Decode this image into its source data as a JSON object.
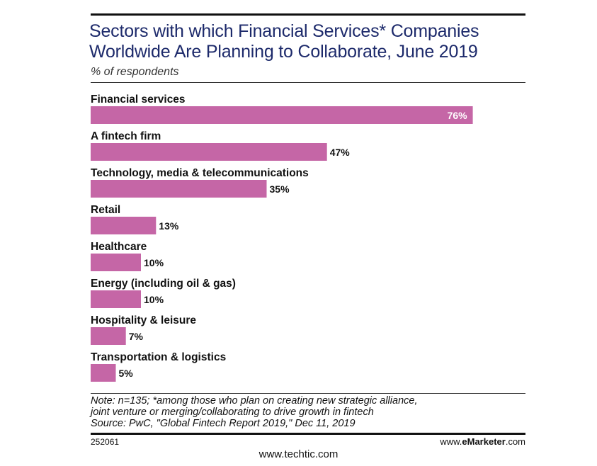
{
  "header": {
    "title_line1": "Sectors with which Financial Services* Companies",
    "title_line2": "Worldwide Are Planning to Collaborate, June 2019",
    "subtitle": "% of respondents"
  },
  "chart_data": {
    "type": "bar",
    "orientation": "horizontal",
    "title": "Sectors with which Financial Services* Companies Worldwide Are Planning to Collaborate, June 2019",
    "subtitle": "% of respondents",
    "categories": [
      "Financial services",
      "A fintech firm",
      "Technology, media & telecommunications",
      "Retail",
      "Healthcare",
      "Energy (including oil & gas)",
      "Hospitality & leisure",
      "Transportation & logistics"
    ],
    "values": [
      76,
      47,
      35,
      13,
      10,
      10,
      7,
      5
    ],
    "value_labels": [
      "76%",
      "47%",
      "35%",
      "13%",
      "10%",
      "10%",
      "7%",
      "5%"
    ],
    "xlim": [
      0,
      100
    ],
    "grid": false,
    "bar_color": "#c566a6"
  },
  "footer": {
    "note_line1": "Note: n=135; *among those who plan on creating new strategic alliance,",
    "note_line2": "joint venture or merging/collaborating to drive growth in fintech",
    "source": "Source: PwC, \"Global Fintech Report 2019,\" Dec 11, 2019",
    "chart_id": "252061",
    "brand_prefix": "www.",
    "brand_bold": "eMarketer",
    "brand_suffix": ".com",
    "watermark": "www.techtic.com"
  }
}
